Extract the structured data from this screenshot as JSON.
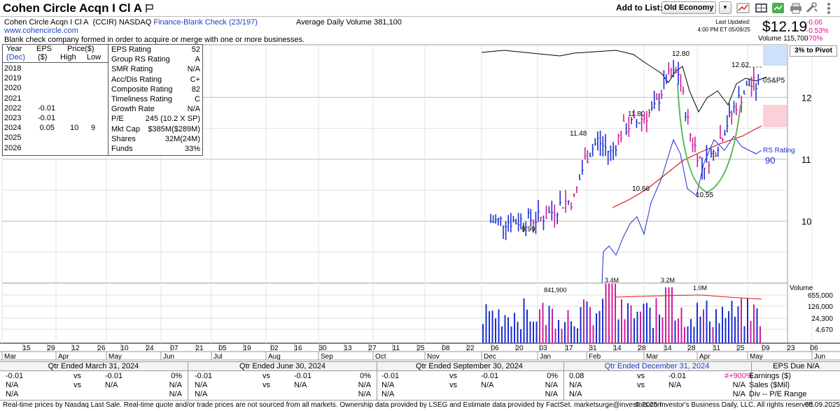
{
  "header": {
    "title": "Cohen Circle Acqn I Cl A",
    "add_to_list": "Add to List:",
    "list_name": "Old Economy"
  },
  "info": {
    "line1_name": "Cohen Circle Acqn I Cl A",
    "line1_ticker": "(CCIR) NASDAQ",
    "line1_group": "Finance-Blank Check (23/197)",
    "line1_volume": "Average Daily Volume 381,100",
    "website": "www.cohencircle.com",
    "description": "Blank check company formed in order to acquire or merge with one or more businesses."
  },
  "quote": {
    "last_updated_label": "Last Updated:",
    "last_updated_time": "4:00 PM ET 05/09/25",
    "price": "$12.19",
    "change": "-0.06",
    "change_pct": "-0.53%",
    "vol_pct": "-70%",
    "volume": "Volume 115,700",
    "pivot": "3% to Pivot"
  },
  "stats": {
    "year_hdr": "Year",
    "dec_hdr": "(Dec)",
    "eps_hdr": "EPS",
    "eps_unit": "($)",
    "price_hdr": "Price($)",
    "high_hdr": "High",
    "low_hdr": "Low",
    "years": [
      {
        "year": "2018",
        "eps": "",
        "high": "",
        "low": ""
      },
      {
        "year": "2019",
        "eps": "",
        "high": "",
        "low": ""
      },
      {
        "year": "2020",
        "eps": "",
        "high": "",
        "low": ""
      },
      {
        "year": "2021",
        "eps": "",
        "high": "",
        "low": ""
      },
      {
        "year": "2022",
        "eps": "-0.01",
        "high": "",
        "low": ""
      },
      {
        "year": "2023",
        "eps": "-0.01",
        "high": "",
        "low": ""
      },
      {
        "year": "2024",
        "eps": "0.05",
        "high": "10",
        "low": "9"
      },
      {
        "year": "2025",
        "eps": "",
        "high": "",
        "low": ""
      },
      {
        "year": "2026",
        "eps": "",
        "high": "",
        "low": ""
      }
    ],
    "ratings": [
      {
        "label": "EPS Rating",
        "value": "52"
      },
      {
        "label": "Group RS Rating",
        "value": "A"
      },
      {
        "label": "SMR Rating",
        "value": "N/A"
      },
      {
        "label": "Acc/Dis Rating",
        "value": "C+"
      },
      {
        "label": "Composite Rating",
        "value": "82"
      },
      {
        "label": "Timeliness Rating",
        "value": "C"
      },
      {
        "label": "Growth Rate",
        "value": "N/A"
      },
      {
        "label": "P/E",
        "value": "245 (10.2 X SP)"
      },
      {
        "label": "Mkt Cap",
        "value": "$385M($289M)"
      },
      {
        "label": "Shares",
        "value": "32M(24M)"
      },
      {
        "label": "Funds",
        "value": "33%"
      }
    ]
  },
  "chart_data": {
    "type": "line",
    "price_axis": {
      "ticks": [
        "12",
        "11",
        "10"
      ],
      "ylim": [
        9.0,
        12.85
      ]
    },
    "volume_axis": {
      "label": "Volume",
      "ticks": [
        "655,000",
        "126,000",
        "24,300",
        "4,670"
      ]
    },
    "annotations": [
      {
        "text": "12.80",
        "x": "Mar 21",
        "y": 12.8
      },
      {
        "text": "12.62",
        "x": "May 01",
        "y": 12.62
      },
      {
        "text": "11.80",
        "x": "Feb 04",
        "y": 11.8
      },
      {
        "text": "11.48",
        "x": "Jan 17",
        "y": 11.48
      },
      {
        "text": "10.66",
        "x": "Feb 03",
        "y": 10.66
      },
      {
        "text": "10.55",
        "x": "Apr 02",
        "y": 10.55
      },
      {
        "text": "9.99",
        "x": "Dec 13",
        "y": 9.99
      },
      {
        "text": "0S&P5"
      },
      {
        "text": "RS Rating"
      },
      {
        "text": "90"
      }
    ],
    "volume_annotations": [
      "3.4M",
      "3.2M",
      "841,900",
      "1.0M"
    ],
    "x_ticks_days": [
      "15",
      "29",
      "12",
      "26",
      "10",
      "24",
      "07",
      "21",
      "05",
      "19",
      "02",
      "16",
      "30",
      "13",
      "27",
      "11",
      "25",
      "08",
      "22",
      "06",
      "20",
      "03",
      "17",
      "31",
      "14",
      "28",
      "14",
      "28",
      "11",
      "25",
      "09",
      "23",
      "06"
    ],
    "x_ticks_months": [
      "Mar",
      "Apr",
      "May",
      "Jun",
      "Jul",
      "Aug",
      "Sep",
      "Oct",
      "Nov",
      "Dec",
      "Jan",
      "Feb",
      "Mar",
      "Apr",
      "May",
      "Jun"
    ],
    "price_series": [
      {
        "x": "Dec 06",
        "y": 10.0
      },
      {
        "x": "Dec 20",
        "y": 10.0
      },
      {
        "x": "Jan 03",
        "y": 10.05
      },
      {
        "x": "Jan 10",
        "y": 10.15
      },
      {
        "x": "Jan 17",
        "y": 10.3
      },
      {
        "x": "Jan 24",
        "y": 10.35
      },
      {
        "x": "Jan 31",
        "y": 11.0
      },
      {
        "x": "Feb 07",
        "y": 11.3
      },
      {
        "x": "Feb 14",
        "y": 11.1
      },
      {
        "x": "Feb 21",
        "y": 11.5
      },
      {
        "x": "Feb 28",
        "y": 11.6
      },
      {
        "x": "Mar 07",
        "y": 11.8
      },
      {
        "x": "Mar 14",
        "y": 12.3
      },
      {
        "x": "Mar 21",
        "y": 12.4
      },
      {
        "x": "Mar 28",
        "y": 11.4
      },
      {
        "x": "Apr 04",
        "y": 10.9
      },
      {
        "x": "Apr 11",
        "y": 11.1
      },
      {
        "x": "Apr 18",
        "y": 11.5
      },
      {
        "x": "Apr 25",
        "y": 11.9
      },
      {
        "x": "May 02",
        "y": 12.2
      },
      {
        "x": "May 09",
        "y": 12.19
      }
    ]
  },
  "bottom": {
    "quarters": [
      {
        "title": "Qtr Ended March 31, 2024",
        "eps": "-0.01",
        "vs": "vs",
        "prior": "-0.01",
        "pct": "0%",
        "sales": "N/A",
        "vs2": "vs",
        "prior2": "N/A",
        "pct2": "N/A"
      },
      {
        "title": "Qtr Ended June 30, 2024",
        "eps": "-0.01",
        "vs": "vs",
        "prior": "-0.01",
        "pct": "0%",
        "sales": "N/A",
        "vs2": "vs",
        "prior2": "N/A",
        "pct2": "N/A"
      },
      {
        "title": "Qtr Ended September 30, 2024",
        "eps": "-0.01",
        "vs": "vs",
        "prior": "-0.01",
        "pct": "0%",
        "sales": "N/A",
        "vs2": "vs",
        "prior2": "N/A",
        "pct2": "N/A"
      },
      {
        "title": "Qtr Ended December 31, 2024",
        "eps": "0.08",
        "vs": "vs",
        "prior": "-0.01",
        "pct": "#+900%",
        "sales": "N/A",
        "vs2": "vs",
        "prior2": "N/A",
        "pct2": "N/A"
      }
    ],
    "side": {
      "title": "EPS Due N/A",
      "l1": "Earnings ($)",
      "l2": "Sales ($Mil)",
      "l3": "Div -- P/E Range"
    },
    "extra_na": [
      "N/A",
      "N/A",
      "N/A",
      "N/A",
      "N/A",
      "N/A",
      "N/A",
      "N/A"
    ]
  },
  "footer": {
    "left": "Real-time prices by Nasdaq Last Sale. Real-time quote and/or trade prices are not sourced from all markets. Ownership data provided by LSEG and Estimate data provided by FactSet. marketsurge@investors.com",
    "right": "© 2025 Investor's Business Daily, LLC. All rights reserved.",
    "date": "05.09.2025"
  },
  "colors": {
    "up": "#1c2fd0",
    "down": "#d01b9c",
    "ma50": "#e01818",
    "rs": "#1c2fd0",
    "base": "#5cb85c",
    "brand": "#1d3fbf"
  }
}
